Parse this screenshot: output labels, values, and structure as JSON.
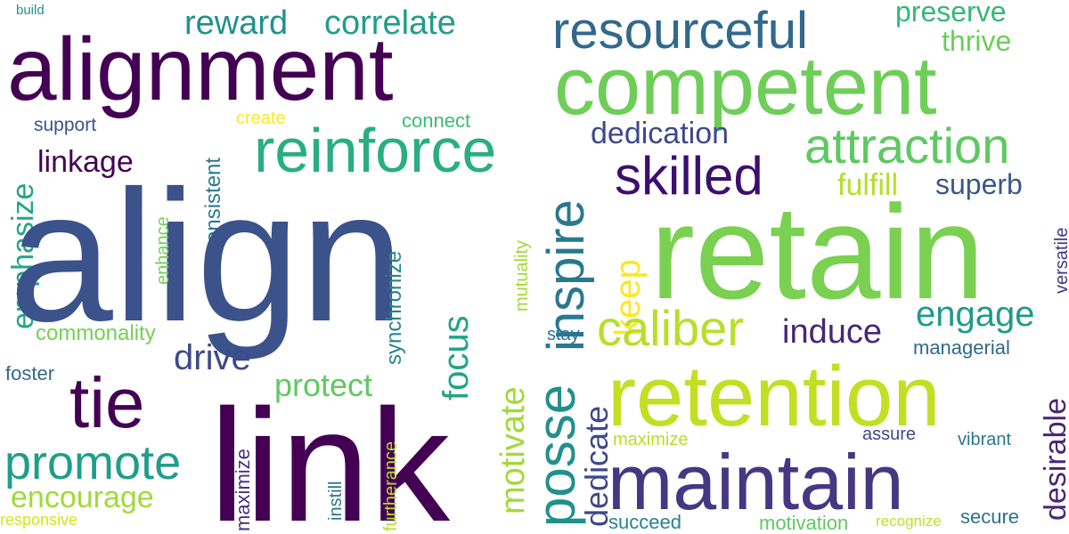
{
  "words": [
    {
      "text": "build",
      "color": "#21918c"
    },
    {
      "text": "alignment",
      "color": "#440154"
    },
    {
      "text": "reward",
      "color": "#21918c"
    },
    {
      "text": "correlate",
      "color": "#1f9e89"
    },
    {
      "text": "resourceful",
      "color": "#31688e"
    },
    {
      "text": "preserve",
      "color": "#35b779"
    },
    {
      "text": "thrive",
      "color": "#6ccd5a"
    },
    {
      "text": "competent",
      "color": "#6ece58"
    },
    {
      "text": "support",
      "color": "#3b528b"
    },
    {
      "text": "create",
      "color": "#fde725"
    },
    {
      "text": "connect",
      "color": "#3bbb75"
    },
    {
      "text": "reinforce",
      "color": "#29af7f"
    },
    {
      "text": "dedication",
      "color": "#3e4989"
    },
    {
      "text": "attraction",
      "color": "#5ec962"
    },
    {
      "text": "linkage",
      "color": "#440154"
    },
    {
      "text": "emphasize",
      "color": "#22a785"
    },
    {
      "text": "consistent",
      "color": "#2a788e"
    },
    {
      "text": "skilled",
      "color": "#3b0f70"
    },
    {
      "text": "fulfill",
      "color": "#b5de2b"
    },
    {
      "text": "superb",
      "color": "#38588c"
    },
    {
      "text": "align",
      "color": "#3b528b"
    },
    {
      "text": "enhance",
      "color": "#75d054"
    },
    {
      "text": "synchronize",
      "color": "#25848e"
    },
    {
      "text": "mutuality",
      "color": "#a2da37"
    },
    {
      "text": "inspire",
      "color": "#2a788e"
    },
    {
      "text": "keep",
      "color": "#fde725"
    },
    {
      "text": "retain",
      "color": "#7ad151"
    },
    {
      "text": "versatile",
      "color": "#453781"
    },
    {
      "text": "engage",
      "color": "#1f9a8a"
    },
    {
      "text": "commonality",
      "color": "#75d054"
    },
    {
      "text": "caliber",
      "color": "#b8de29"
    },
    {
      "text": "induce",
      "color": "#482677"
    },
    {
      "text": "stay",
      "color": "#2c728e"
    },
    {
      "text": "focus",
      "color": "#20a486"
    },
    {
      "text": "drive",
      "color": "#3e4989"
    },
    {
      "text": "managerial",
      "color": "#31688e"
    },
    {
      "text": "foster",
      "color": "#31688e"
    },
    {
      "text": "tie",
      "color": "#440154"
    },
    {
      "text": "protect",
      "color": "#5ec962"
    },
    {
      "text": "retention",
      "color": "#c2df23"
    },
    {
      "text": "link",
      "color": "#440154"
    },
    {
      "text": "motivate",
      "color": "#a0da39"
    },
    {
      "text": "posse",
      "color": "#21908d"
    },
    {
      "text": "dedicate",
      "color": "#3e4989"
    },
    {
      "text": "desirable",
      "color": "#482677"
    },
    {
      "text": "promote",
      "color": "#1f9e89"
    },
    {
      "text": "maximize",
      "color": "#46327e"
    },
    {
      "text": "furtherance",
      "color": "#b5de2b"
    },
    {
      "text": "assure",
      "color": "#3e4989"
    },
    {
      "text": "vibrant",
      "color": "#2a788e"
    },
    {
      "text": "maximize",
      "color": "#b8de29"
    },
    {
      "text": "maintain",
      "color": "#453781"
    },
    {
      "text": "encourage",
      "color": "#a0da39"
    },
    {
      "text": "instill",
      "color": "#2c728e"
    },
    {
      "text": "responsive",
      "color": "#d8e219"
    },
    {
      "text": "succeed",
      "color": "#26828e"
    },
    {
      "text": "motivation",
      "color": "#5ec962"
    },
    {
      "text": "recognize",
      "color": "#c2df23"
    },
    {
      "text": "secure",
      "color": "#2c728e"
    }
  ]
}
